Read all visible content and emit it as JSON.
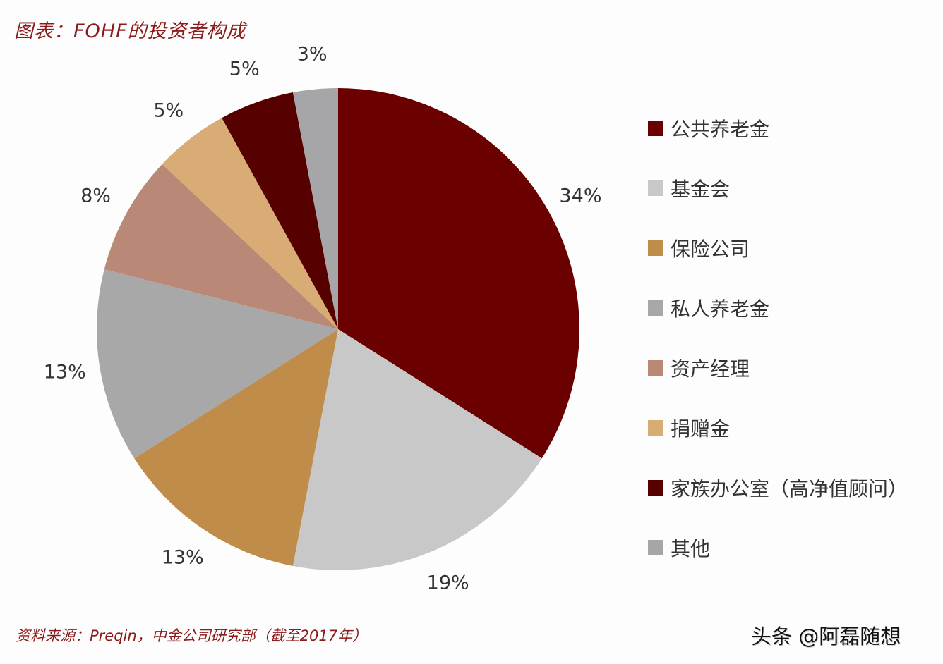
{
  "title": "图表：FOHF的投资者构成",
  "source": "资料来源：Preqin，中金公司研究部（截至2017年）",
  "watermark": "头条 @阿磊随想",
  "chart_data": {
    "type": "pie",
    "title": "图表：FOHF的投资者构成",
    "categories": [
      "公共养老金",
      "基金会",
      "保险公司",
      "私人养老金",
      "资产经理",
      "捐赠金",
      "家族办公室（高净值顾问）",
      "其他"
    ],
    "values": [
      34,
      19,
      13,
      13,
      8,
      5,
      5,
      3
    ],
    "labels": [
      "34%",
      "19%",
      "13%",
      "13%",
      "8%",
      "5%",
      "5%",
      "3%"
    ],
    "colors": [
      "#6b0000",
      "#c9c8c9",
      "#c08c4a",
      "#a8a8a9",
      "#b98877",
      "#d8ac74",
      "#560000",
      "#a6a5a7"
    ],
    "start_angle": "12 o'clock",
    "direction": "clockwise",
    "legend_position": "right"
  },
  "legend": [
    {
      "label": "公共养老金",
      "color": "#6b0000"
    },
    {
      "label": "基金会",
      "color": "#c9c8c9"
    },
    {
      "label": "保险公司",
      "color": "#c08c4a"
    },
    {
      "label": "私人养老金",
      "color": "#a8a8a9"
    },
    {
      "label": "资产经理",
      "color": "#b98877"
    },
    {
      "label": "捐赠金",
      "color": "#d8ac74"
    },
    {
      "label": "家族办公室（高净值顾问）",
      "color": "#560000"
    },
    {
      "label": "其他",
      "color": "#a6a5a7"
    }
  ]
}
